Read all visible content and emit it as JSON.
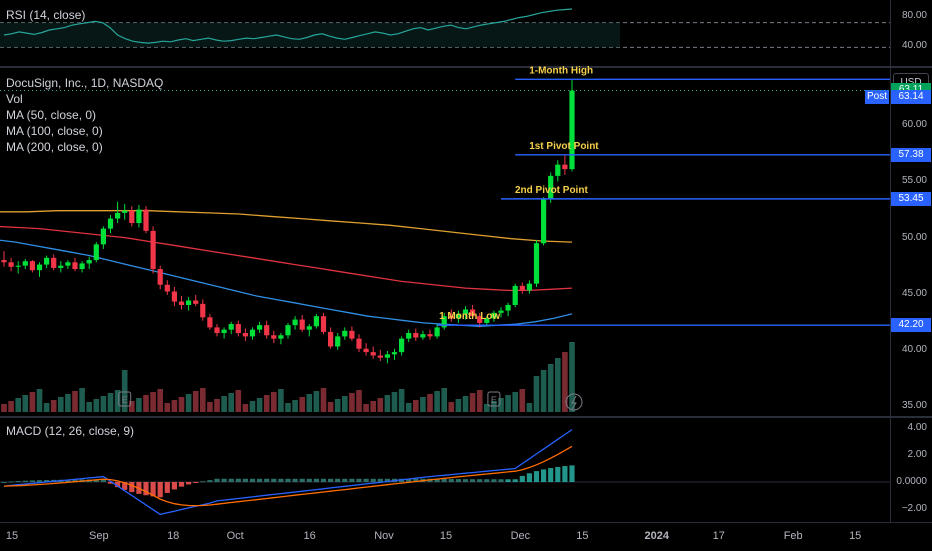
{
  "rsi": {
    "legend": "RSI (14, close)",
    "ticks": [
      {
        "v": 80,
        "label": "80.00"
      },
      {
        "v": 40,
        "label": "40.00"
      }
    ],
    "overbought": 70,
    "oversold": 30,
    "values": [
      50,
      52,
      55,
      53,
      51,
      54,
      58,
      60,
      62,
      66,
      68,
      70,
      72,
      70,
      62,
      50,
      44,
      40,
      38,
      37,
      38,
      40,
      39,
      42,
      44,
      41,
      43,
      45,
      42,
      40,
      41,
      43,
      45,
      44,
      46,
      48,
      50,
      47,
      44,
      43,
      46,
      50,
      52,
      48,
      45,
      43,
      46,
      49,
      52,
      55,
      53,
      50,
      52,
      56,
      60,
      62,
      58,
      61,
      64,
      66,
      62,
      60,
      63,
      66,
      68,
      70,
      72,
      75,
      78,
      80,
      83,
      86,
      88,
      90,
      91,
      92
    ]
  },
  "price": {
    "legend": {
      "title": "DocuSign, Inc., 1D, NASDAQ",
      "vol": "Vol",
      "ma50": "MA (50, close, 0)",
      "ma100": "MA (100, close, 0)",
      "ma200": "MA (200, close, 0)"
    },
    "currency": "USD",
    "post_label": "Post",
    "ticks": [
      {
        "v": 60,
        "label": "60.00"
      },
      {
        "v": 55,
        "label": "55.00"
      },
      {
        "v": 50,
        "label": "50.00"
      },
      {
        "v": 45,
        "label": "45.00"
      },
      {
        "v": 40,
        "label": "40.00"
      },
      {
        "v": 35,
        "label": "35.00"
      }
    ],
    "badges": [
      {
        "v": 63.11,
        "label": "63.11",
        "color": "#00a35a"
      },
      {
        "v": 57.38,
        "label": "57.38",
        "color": "#2962ff"
      },
      {
        "v": 53.45,
        "label": "53.45",
        "color": "#2962ff"
      },
      {
        "v": 42.2,
        "label": "42.20",
        "color": "#2962ff"
      }
    ],
    "post_value": "63.14",
    "levels": [
      {
        "name": "1-Month High",
        "value": 64.1,
        "start_index": 72
      },
      {
        "name": "1st Pivot Point",
        "value": 57.38,
        "start_index": 72
      },
      {
        "name": "2nd Pivot Point",
        "value": 53.45,
        "start_index": 70
      },
      {
        "name": "1 Month Low",
        "value": 42.2,
        "start_index": 61
      }
    ],
    "current_line": 63.11
  },
  "macd": {
    "legend": "MACD (12, 26, close, 9)",
    "ticks": [
      {
        "v": 4,
        "label": "4.00"
      },
      {
        "v": 2,
        "label": "2.00"
      },
      {
        "v": 0,
        "label": "0.0000"
      },
      {
        "v": -2,
        "label": "−2.00"
      }
    ]
  },
  "x_axis": [
    {
      "i": 0,
      "label": "15"
    },
    {
      "i": 7,
      "label": "Sep"
    },
    {
      "i": 13,
      "label": "18"
    },
    {
      "i": 18,
      "label": "Oct"
    },
    {
      "i": 24,
      "label": "16"
    },
    {
      "i": 30,
      "label": "Nov"
    },
    {
      "i": 35,
      "label": "15"
    },
    {
      "i": 41,
      "label": "Dec"
    },
    {
      "i": 46,
      "label": "15"
    },
    {
      "i": 52,
      "label": "2024"
    },
    {
      "i": 57,
      "label": "17"
    },
    {
      "i": 63,
      "label": "Feb"
    },
    {
      "i": 68,
      "label": "15"
    }
  ],
  "colors": {
    "up": "#00e03a",
    "down": "#f2364a",
    "ma50": "#2f8fe5",
    "ma100": "#e0333f",
    "ma200": "#e0a030",
    "rsi": "#26a69a",
    "macd": "#2962ff",
    "signal": "#ff6d00"
  },
  "chart_data": {
    "type": "candlestick",
    "title": "DocuSign, Inc., 1D, NASDAQ",
    "ylabel": "USD",
    "ylim": [
      35,
      66
    ],
    "candles": [
      [
        48.0,
        48.8,
        47.4,
        47.8
      ],
      [
        47.8,
        48.2,
        47.0,
        47.4
      ],
      [
        47.4,
        47.9,
        46.8,
        47.5
      ],
      [
        47.5,
        48.1,
        47.2,
        47.9
      ],
      [
        47.9,
        48.0,
        46.9,
        47.1
      ],
      [
        47.1,
        47.8,
        46.5,
        47.6
      ],
      [
        47.6,
        48.4,
        47.3,
        48.2
      ],
      [
        48.2,
        48.5,
        47.1,
        47.3
      ],
      [
        47.3,
        47.9,
        46.9,
        47.5
      ],
      [
        47.5,
        48.0,
        47.2,
        47.8
      ],
      [
        47.8,
        48.2,
        47.0,
        47.2
      ],
      [
        47.2,
        47.9,
        46.9,
        47.7
      ],
      [
        47.7,
        48.3,
        47.2,
        48.0
      ],
      [
        48.0,
        49.6,
        47.8,
        49.4
      ],
      [
        49.4,
        51.0,
        49.0,
        50.8
      ],
      [
        50.8,
        52.0,
        50.4,
        51.7
      ],
      [
        51.7,
        53.2,
        51.3,
        52.2
      ],
      [
        52.2,
        53.0,
        51.6,
        52.4
      ],
      [
        52.4,
        52.8,
        51.0,
        51.3
      ],
      [
        51.3,
        52.9,
        50.9,
        52.5
      ],
      [
        52.5,
        52.8,
        50.4,
        50.6
      ],
      [
        50.6,
        51.0,
        46.8,
        47.2
      ],
      [
        47.2,
        47.5,
        45.4,
        45.8
      ],
      [
        45.8,
        46.2,
        44.9,
        45.2
      ],
      [
        45.2,
        45.6,
        43.9,
        44.3
      ],
      [
        44.3,
        44.8,
        43.6,
        44.0
      ],
      [
        44.0,
        44.7,
        43.5,
        44.4
      ],
      [
        44.4,
        44.9,
        43.9,
        44.1
      ],
      [
        44.1,
        44.5,
        42.6,
        42.9
      ],
      [
        42.9,
        43.2,
        41.8,
        42.0
      ],
      [
        42.0,
        42.3,
        41.2,
        41.5
      ],
      [
        41.5,
        42.0,
        41.0,
        41.8
      ],
      [
        41.8,
        42.5,
        41.4,
        42.3
      ],
      [
        42.3,
        42.6,
        41.2,
        41.5
      ],
      [
        41.5,
        41.9,
        40.8,
        41.2
      ],
      [
        41.2,
        42.0,
        40.9,
        41.8
      ],
      [
        41.8,
        42.5,
        41.5,
        42.2
      ],
      [
        42.2,
        42.6,
        41.0,
        41.3
      ],
      [
        41.3,
        41.7,
        40.6,
        41.0
      ],
      [
        41.0,
        41.5,
        40.5,
        41.3
      ],
      [
        41.3,
        42.4,
        41.0,
        42.2
      ],
      [
        42.2,
        43.0,
        41.8,
        42.7
      ],
      [
        42.7,
        43.1,
        41.6,
        41.8
      ],
      [
        41.8,
        42.3,
        41.2,
        42.1
      ],
      [
        42.1,
        43.2,
        41.9,
        43.0
      ],
      [
        43.0,
        43.3,
        41.4,
        41.6
      ],
      [
        41.6,
        42.0,
        40.1,
        40.3
      ],
      [
        40.3,
        41.5,
        40.0,
        41.2
      ],
      [
        41.2,
        42.0,
        40.9,
        41.7
      ],
      [
        41.7,
        42.1,
        40.8,
        41.0
      ],
      [
        41.0,
        41.4,
        39.8,
        40.1
      ],
      [
        40.1,
        40.6,
        39.5,
        39.8
      ],
      [
        39.8,
        40.3,
        39.2,
        39.5
      ],
      [
        39.5,
        40.0,
        39.0,
        39.3
      ],
      [
        39.3,
        39.9,
        38.8,
        39.6
      ],
      [
        39.6,
        40.1,
        39.1,
        39.8
      ],
      [
        39.8,
        41.2,
        39.5,
        41.0
      ],
      [
        41.0,
        41.8,
        40.7,
        41.5
      ],
      [
        41.5,
        41.9,
        40.8,
        41.1
      ],
      [
        41.1,
        41.7,
        40.9,
        41.4
      ],
      [
        41.4,
        41.8,
        40.9,
        41.2
      ],
      [
        41.2,
        42.3,
        41.0,
        42.0
      ],
      [
        42.0,
        43.3,
        41.8,
        43.0
      ],
      [
        43.0,
        43.6,
        42.5,
        42.8
      ],
      [
        42.8,
        43.5,
        42.4,
        43.2
      ],
      [
        43.2,
        43.9,
        42.7,
        43.6
      ],
      [
        43.6,
        44.0,
        42.8,
        43.0
      ],
      [
        43.0,
        43.3,
        42.0,
        42.4
      ],
      [
        42.4,
        43.0,
        42.1,
        42.8
      ],
      [
        42.8,
        43.5,
        42.5,
        43.3
      ],
      [
        43.3,
        43.8,
        42.9,
        43.5
      ],
      [
        43.5,
        44.2,
        43.0,
        44.0
      ],
      [
        44.0,
        45.9,
        43.8,
        45.7
      ],
      [
        45.7,
        46.0,
        45.0,
        45.3
      ],
      [
        45.3,
        46.2,
        45.0,
        45.9
      ],
      [
        45.9,
        49.8,
        45.6,
        49.5
      ],
      [
        49.5,
        53.6,
        49.3,
        53.4
      ],
      [
        53.4,
        55.8,
        53.1,
        55.5
      ],
      [
        55.5,
        56.9,
        55.0,
        56.5
      ],
      [
        56.5,
        57.3,
        55.6,
        56.1
      ],
      [
        56.1,
        64.1,
        55.9,
        63.1
      ]
    ],
    "ma50": [
      49.8,
      49.6,
      49.3,
      49.0,
      48.7,
      48.4,
      48.0,
      47.6,
      47.2,
      46.8,
      46.4,
      46.0,
      45.6,
      45.2,
      44.8,
      44.5,
      44.2,
      43.9,
      43.6,
      43.3,
      43.0,
      42.8,
      42.6,
      42.4,
      42.3,
      42.2,
      42.1,
      42.2,
      42.3,
      42.5,
      42.8,
      43.2
    ],
    "ma100": [
      51.0,
      50.9,
      50.8,
      50.6,
      50.4,
      50.2,
      50.0,
      49.7,
      49.4,
      49.1,
      48.8,
      48.5,
      48.2,
      47.9,
      47.6,
      47.3,
      47.0,
      46.7,
      46.4,
      46.1,
      45.9,
      45.7,
      45.5,
      45.4,
      45.3,
      45.3,
      45.4,
      45.5
    ],
    "ma200": [
      52.3,
      52.3,
      52.4,
      52.4,
      52.4,
      52.4,
      52.3,
      52.2,
      52.1,
      51.9,
      51.7,
      51.5,
      51.3,
      51.1,
      50.8,
      50.5,
      50.2,
      49.9,
      49.7,
      49.6
    ]
  }
}
